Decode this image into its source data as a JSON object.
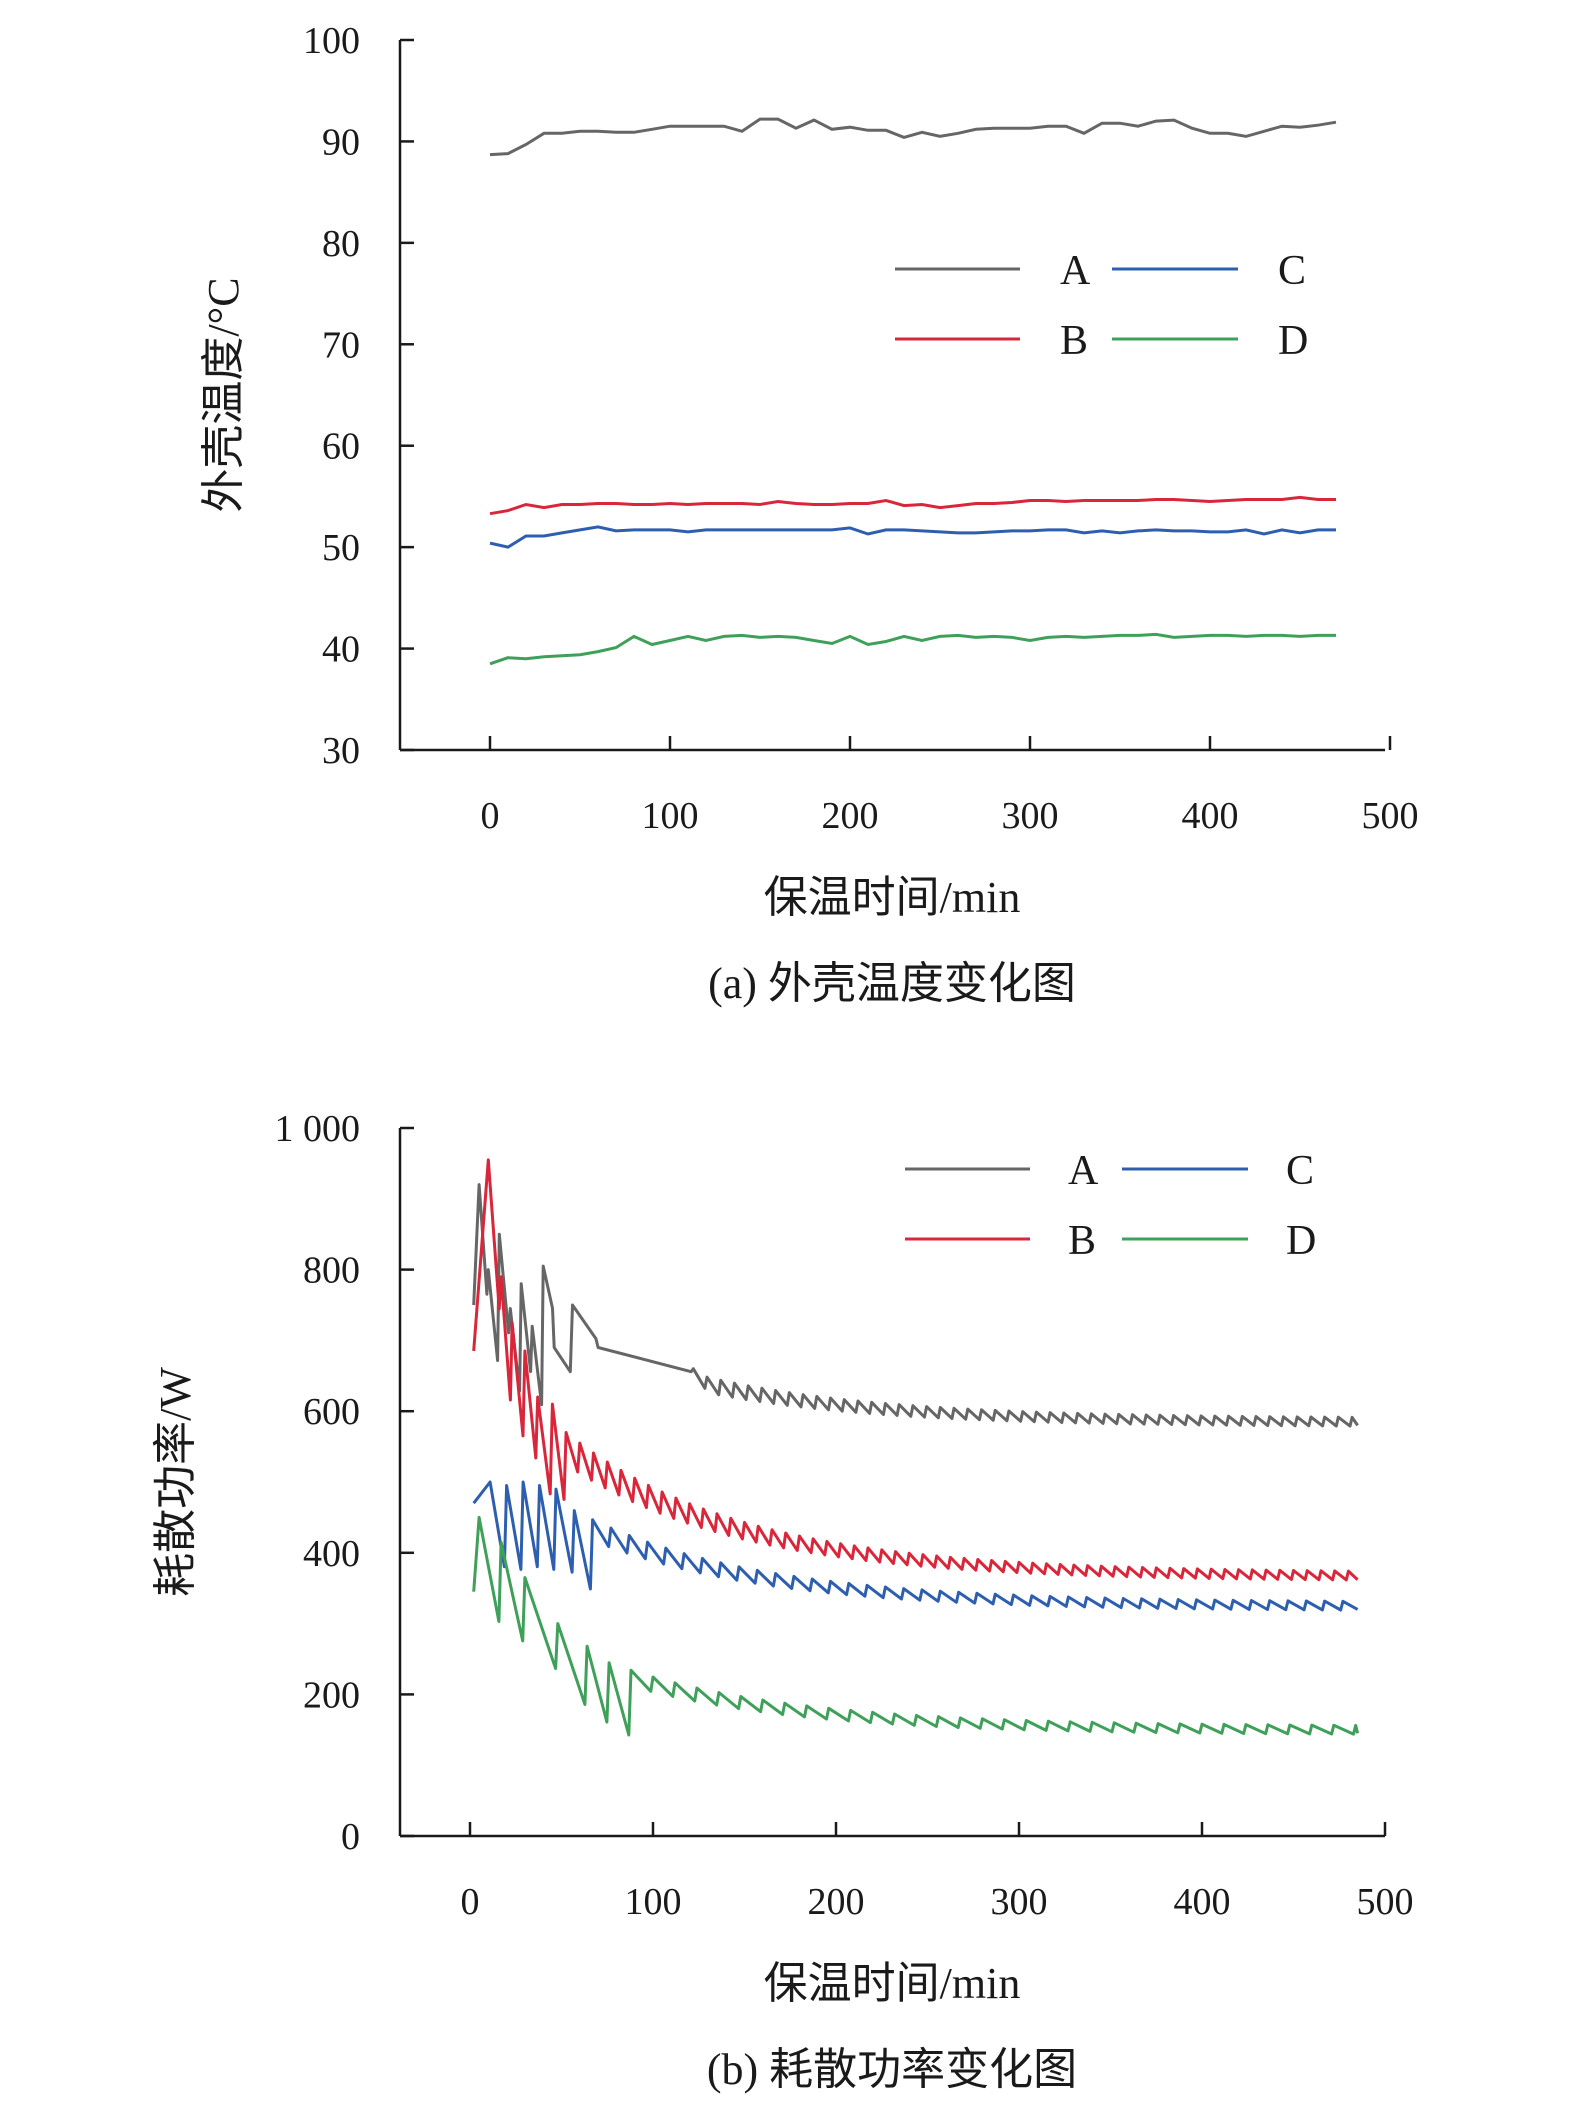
{
  "chart_data": [
    {
      "type": "line",
      "caption": "(a) 外壳温度变化图",
      "xlabel": "保温时间/min",
      "ylabel": "外壳温度/°C",
      "xlim": [
        -50,
        500
      ],
      "ylim": [
        30,
        100
      ],
      "xticks": [
        "0",
        "100",
        "200",
        "300",
        "400",
        "500"
      ],
      "yticks": [
        "30",
        "40",
        "50",
        "60",
        "70",
        "80",
        "90",
        "100"
      ],
      "legend": [
        "A",
        "B",
        "C",
        "D"
      ],
      "series": [
        {
          "name": "A",
          "color": "#666666",
          "x": [
            0,
            10,
            20,
            30,
            40,
            50,
            60,
            70,
            80,
            90,
            100,
            110,
            120,
            130,
            140,
            150,
            160,
            170,
            180,
            190,
            200,
            210,
            220,
            230,
            240,
            250,
            260,
            270,
            280,
            290,
            300,
            310,
            320,
            330,
            340,
            350,
            360,
            370,
            380,
            390,
            400,
            410,
            420,
            430,
            440,
            450,
            460,
            470
          ],
          "y": [
            88.7,
            88.8,
            89.7,
            90.8,
            90.8,
            91.0,
            91.0,
            90.9,
            90.9,
            91.2,
            91.5,
            91.5,
            91.5,
            91.5,
            91.0,
            92.2,
            92.2,
            91.3,
            92.1,
            91.2,
            91.4,
            91.1,
            91.1,
            90.4,
            90.9,
            90.5,
            90.8,
            91.2,
            91.3,
            91.3,
            91.3,
            91.5,
            91.5,
            90.8,
            91.8,
            91.8,
            91.5,
            92.0,
            92.1,
            91.3,
            90.8,
            90.8,
            90.5,
            91.0,
            91.5,
            91.4,
            91.6,
            91.9
          ]
        },
        {
          "name": "B",
          "color": "#d9263a",
          "x": [
            0,
            10,
            20,
            30,
            40,
            50,
            60,
            70,
            80,
            90,
            100,
            110,
            120,
            130,
            140,
            150,
            160,
            170,
            180,
            190,
            200,
            210,
            220,
            230,
            240,
            250,
            260,
            270,
            280,
            290,
            300,
            310,
            320,
            330,
            340,
            350,
            360,
            370,
            380,
            390,
            400,
            410,
            420,
            430,
            440,
            450,
            460,
            470
          ],
          "y": [
            53.3,
            53.6,
            54.2,
            53.9,
            54.2,
            54.2,
            54.3,
            54.3,
            54.2,
            54.2,
            54.3,
            54.2,
            54.3,
            54.3,
            54.3,
            54.2,
            54.5,
            54.3,
            54.2,
            54.2,
            54.3,
            54.3,
            54.6,
            54.1,
            54.2,
            53.9,
            54.1,
            54.3,
            54.3,
            54.4,
            54.6,
            54.6,
            54.5,
            54.6,
            54.6,
            54.6,
            54.6,
            54.7,
            54.7,
            54.6,
            54.5,
            54.6,
            54.7,
            54.7,
            54.7,
            54.9,
            54.7,
            54.7
          ]
        },
        {
          "name": "C",
          "color": "#2e5fae",
          "x": [
            0,
            10,
            20,
            30,
            40,
            50,
            60,
            70,
            80,
            90,
            100,
            110,
            120,
            130,
            140,
            150,
            160,
            170,
            180,
            190,
            200,
            210,
            220,
            230,
            240,
            250,
            260,
            270,
            280,
            290,
            300,
            310,
            320,
            330,
            340,
            350,
            360,
            370,
            380,
            390,
            400,
            410,
            420,
            430,
            440,
            450,
            460,
            470
          ],
          "y": [
            50.4,
            50.0,
            51.1,
            51.1,
            51.4,
            51.7,
            52.0,
            51.6,
            51.7,
            51.7,
            51.7,
            51.5,
            51.7,
            51.7,
            51.7,
            51.7,
            51.7,
            51.7,
            51.7,
            51.7,
            51.9,
            51.3,
            51.7,
            51.7,
            51.6,
            51.5,
            51.4,
            51.4,
            51.5,
            51.6,
            51.6,
            51.7,
            51.7,
            51.4,
            51.6,
            51.4,
            51.6,
            51.7,
            51.6,
            51.6,
            51.5,
            51.5,
            51.7,
            51.3,
            51.7,
            51.4,
            51.7,
            51.7
          ]
        },
        {
          "name": "D",
          "color": "#3fa05a",
          "x": [
            0,
            10,
            20,
            30,
            40,
            50,
            60,
            70,
            80,
            90,
            100,
            110,
            120,
            130,
            140,
            150,
            160,
            170,
            180,
            190,
            200,
            210,
            220,
            230,
            240,
            250,
            260,
            270,
            280,
            290,
            300,
            310,
            320,
            330,
            340,
            350,
            360,
            370,
            380,
            390,
            400,
            410,
            420,
            430,
            440,
            450,
            460,
            470
          ],
          "y": [
            38.5,
            39.1,
            39.0,
            39.2,
            39.3,
            39.4,
            39.7,
            40.1,
            41.2,
            40.4,
            40.8,
            41.2,
            40.8,
            41.2,
            41.3,
            41.1,
            41.2,
            41.1,
            40.8,
            40.5,
            41.2,
            40.4,
            40.7,
            41.2,
            40.8,
            41.2,
            41.3,
            41.1,
            41.2,
            41.1,
            40.8,
            41.1,
            41.2,
            41.1,
            41.2,
            41.3,
            41.3,
            41.4,
            41.1,
            41.2,
            41.3,
            41.3,
            41.2,
            41.3,
            41.3,
            41.2,
            41.3,
            41.3
          ]
        }
      ]
    },
    {
      "type": "line",
      "caption": "(b) 耗散功率变化图",
      "xlabel": "保温时间/min",
      "ylabel": "耗散功率/W",
      "xlim": [
        -37,
        500
      ],
      "ylim": [
        0,
        1000
      ],
      "xticks": [
        "0",
        "100",
        "200",
        "300",
        "400",
        "500"
      ],
      "yticks": [
        "0",
        "200",
        "400",
        "600",
        "800",
        "1 000"
      ],
      "legend": [
        "A",
        "B",
        "C",
        "D"
      ],
      "series": [
        {
          "name": "A",
          "color": "#666666",
          "start": 750,
          "peak": 920,
          "trough_end": 580,
          "peak_end": 590,
          "period": 7.5,
          "end": 485,
          "early_peaks": [
            [
              5,
              920
            ],
            [
              10,
              800
            ],
            [
              16,
              850
            ],
            [
              22,
              745
            ],
            [
              28,
              780
            ],
            [
              34,
              720
            ],
            [
              40,
              805
            ],
            [
              46,
              690
            ],
            [
              56,
              750
            ],
            [
              70,
              690
            ],
            [
              122,
              660
            ]
          ]
        },
        {
          "name": "B",
          "color": "#d9263a",
          "start": 685,
          "peak": 955,
          "trough_end": 362,
          "peak_end": 372,
          "period": 7.5,
          "end": 485,
          "early_peaks": [
            [
              10,
              955
            ],
            [
              17,
              790
            ],
            [
              23,
              725
            ],
            [
              30,
              685
            ],
            [
              37,
              620
            ],
            [
              45,
              610
            ]
          ]
        },
        {
          "name": "C",
          "color": "#2e5fae",
          "start": 470,
          "peak": 500,
          "trough_end": 320,
          "peak_end": 330,
          "period": 10,
          "end": 485,
          "early_peaks": [
            [
              11,
              500
            ],
            [
              20,
              495
            ],
            [
              29,
              500
            ],
            [
              38,
              495
            ],
            [
              47,
              490
            ]
          ]
        },
        {
          "name": "D",
          "color": "#3fa05a",
          "start": 345,
          "peak": 450,
          "trough_end": 145,
          "peak_end": 155,
          "period": 12,
          "end": 485,
          "early_peaks": [
            [
              5,
              450
            ],
            [
              17,
              415
            ],
            [
              30,
              365
            ],
            [
              48,
              300
            ],
            [
              64,
              268
            ]
          ]
        }
      ]
    }
  ]
}
